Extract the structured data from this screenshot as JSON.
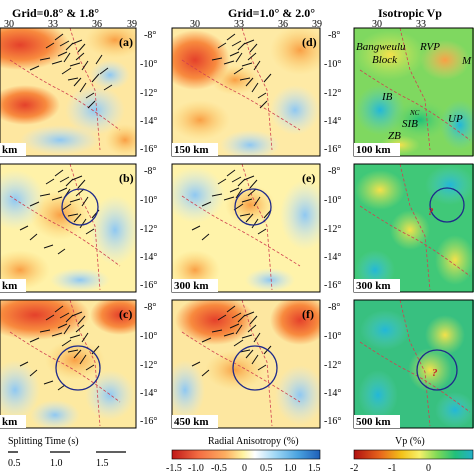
{
  "titles": {
    "left": "Grid=0.8° & 1.8°",
    "middle": "Grid=1.0° & 2.0°",
    "right": "Isotropic Vp"
  },
  "lon_ticks_left": [
    "30",
    "33",
    "36",
    "39"
  ],
  "lon_ticks_middle": [
    "30",
    "33",
    "36",
    "39"
  ],
  "lon_ticks_right": [
    "30",
    "33"
  ],
  "lat_ticks": [
    "-8°",
    "-10°",
    "-12°",
    "-14°",
    "-16°"
  ],
  "panels": {
    "a": {
      "label": "(a)",
      "depth": "km"
    },
    "b": {
      "label": "(b)",
      "depth": "km"
    },
    "c": {
      "label": "(c)",
      "depth": "km"
    },
    "d": {
      "label": "(d)",
      "depth": "150 km"
    },
    "e": {
      "label": "(e)",
      "depth": "300 km"
    },
    "f": {
      "label": "(f)",
      "depth": "450 km"
    },
    "g": {
      "depth": "100 km"
    },
    "h": {
      "depth": "300 km"
    },
    "i": {
      "depth": "500 km"
    }
  },
  "geo_labels": {
    "bangweulu": "Bangweulu",
    "block": "Block",
    "rvp": "RVP",
    "m": "M",
    "ib": "IB",
    "nc": "NC",
    "sib": "SIB",
    "zb": "ZB",
    "up": "UP",
    "question": "?"
  },
  "splitting_legend": {
    "title": "Splitting Time (s)",
    "items": [
      "0.5",
      "1.0",
      "1.5"
    ]
  },
  "anisotropy_colorbar": {
    "title": "Radial Anisotropy (%)",
    "ticks": [
      "-1.5",
      "-1.0",
      "-0.5",
      "0",
      "0.5",
      "1.0",
      "1.5"
    ]
  },
  "vp_colorbar": {
    "title": "Vp (%)",
    "ticks": [
      "-2",
      "-1",
      "0"
    ]
  },
  "colors": {
    "anisotropy_scale": [
      "#d7191c",
      "#f46d43",
      "#fdae61",
      "#fee08b",
      "#ffffbf",
      "#b8e6ff",
      "#74c0ef",
      "#2b83ba"
    ],
    "vp_scale": [
      "#c0392b",
      "#e67e22",
      "#f1c40f",
      "#f7f06a",
      "#7ed957",
      "#2ecc71",
      "#27c2c9",
      "#2d7ddb"
    ],
    "circle": "#1f2a8a",
    "fault": "#d04050"
  }
}
